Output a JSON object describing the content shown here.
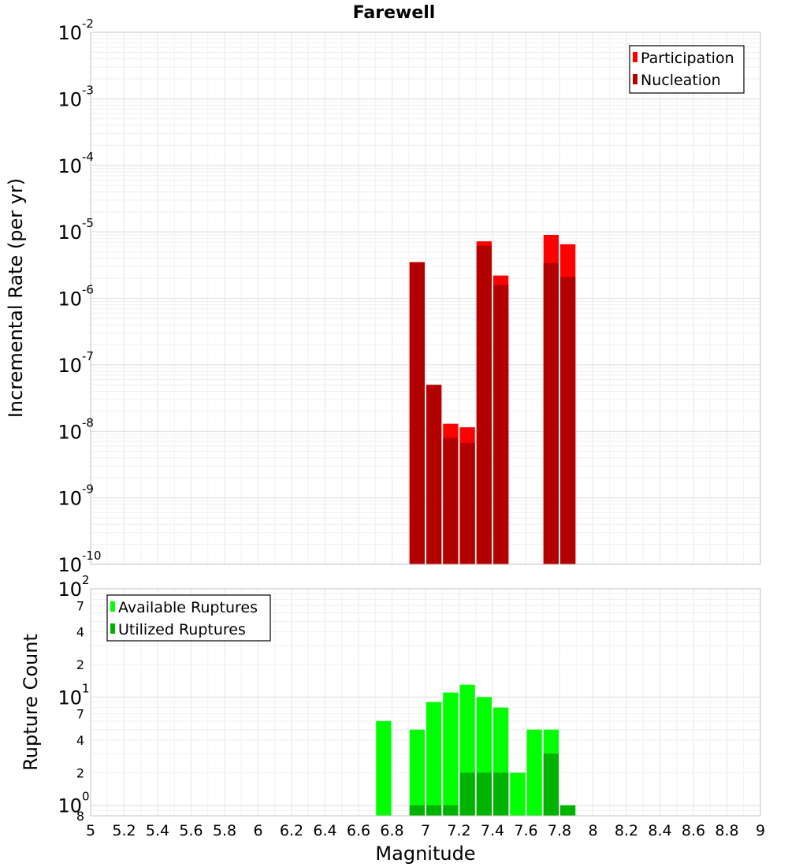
{
  "chart_data": [
    {
      "type": "bar",
      "title": "Farewell",
      "xlabel": "",
      "ylabel": "Incremental Rate (per yr)",
      "yscale": "log",
      "xlim": [
        5,
        9
      ],
      "ylim": [
        1e-10,
        0.01
      ],
      "y_ticks": [
        {
          "base": "10",
          "exp": "-2",
          "value": 0.01
        },
        {
          "base": "10",
          "exp": "-3",
          "value": 0.001
        },
        {
          "base": "10",
          "exp": "-4",
          "value": 0.0001
        },
        {
          "base": "10",
          "exp": "-5",
          "value": 1e-05
        },
        {
          "base": "10",
          "exp": "-6",
          "value": 1e-06
        },
        {
          "base": "10",
          "exp": "-7",
          "value": 1e-07
        },
        {
          "base": "10",
          "exp": "-8",
          "value": 1e-08
        },
        {
          "base": "10",
          "exp": "-9",
          "value": 1e-09
        },
        {
          "base": "10",
          "exp": "-10",
          "value": 1e-10
        }
      ],
      "grid": true,
      "legend_position": "top-right",
      "bar_width": 0.1,
      "x": [
        6.95,
        7.05,
        7.15,
        7.25,
        7.35,
        7.45,
        7.75,
        7.85
      ],
      "series": [
        {
          "name": "Participation",
          "color": "#ff0000",
          "values": [
            3.5e-06,
            5e-08,
            1.3e-08,
            1.15e-08,
            7.2e-06,
            2.2e-06,
            9e-06,
            6.5e-06
          ]
        },
        {
          "name": "Nucleation",
          "color": "#b30000",
          "values": [
            3.5e-06,
            5e-08,
            8e-09,
            6.7e-09,
            6.2e-06,
            1.6e-06,
            3.4e-06,
            2.1e-06
          ]
        }
      ]
    },
    {
      "type": "bar",
      "title": "",
      "xlabel": "Magnitude",
      "ylabel": "Rupture Count",
      "yscale": "log",
      "xlim": [
        5,
        9
      ],
      "ylim": [
        0.8,
        100
      ],
      "x_ticks": [
        "5",
        "5.2",
        "5.4",
        "5.6",
        "5.8",
        "6",
        "6.2",
        "6.4",
        "6.6",
        "6.8",
        "7",
        "7.2",
        "7.4",
        "7.6",
        "7.8",
        "8",
        "8.2",
        "8.4",
        "8.6",
        "8.8",
        "9"
      ],
      "y_ticks": [
        {
          "base": "10",
          "exp": "2",
          "value": 100,
          "major": true
        },
        {
          "label": "7",
          "value": 70
        },
        {
          "label": "4",
          "value": 40
        },
        {
          "label": "2",
          "value": 20
        },
        {
          "base": "10",
          "exp": "1",
          "value": 10,
          "major": true
        },
        {
          "label": "7",
          "value": 7
        },
        {
          "label": "4",
          "value": 4
        },
        {
          "label": "2",
          "value": 2
        },
        {
          "base": "10",
          "exp": "0",
          "value": 1,
          "major": true
        },
        {
          "label": "8",
          "value": 0.8
        }
      ],
      "grid": true,
      "legend_position": "top-left",
      "bar_width": 0.1,
      "x": [
        6.75,
        6.95,
        7.05,
        7.15,
        7.25,
        7.35,
        7.45,
        7.55,
        7.65,
        7.75,
        7.85
      ],
      "series": [
        {
          "name": "Available Ruptures",
          "color": "#00ff00",
          "values": [
            6,
            5,
            9,
            11,
            13,
            10,
            8,
            2,
            5,
            5,
            0
          ]
        },
        {
          "name": "Utilized Ruptures",
          "color": "#00b300",
          "values": [
            0,
            1,
            1,
            1,
            2,
            2,
            2,
            0,
            0,
            3,
            1
          ]
        }
      ]
    }
  ]
}
